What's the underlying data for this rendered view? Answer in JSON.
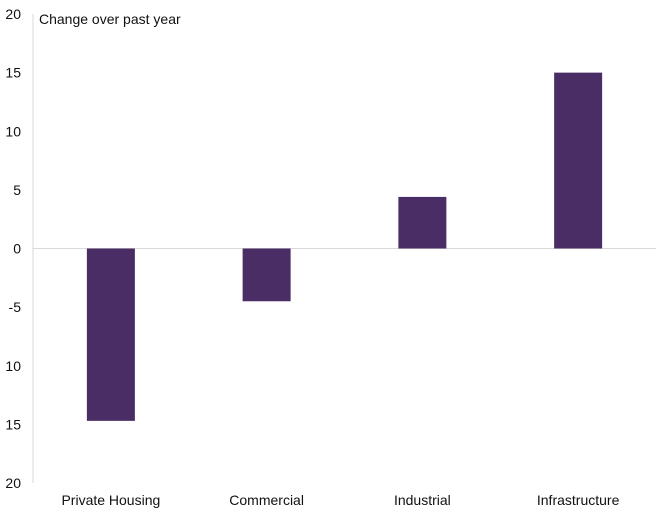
{
  "chart_data": {
    "type": "bar",
    "ylabel": "Change over past year",
    "categories": [
      "Private Housing",
      "Commercial",
      "Industrial",
      "Infrastructure"
    ],
    "values": [
      -14.7,
      -4.5,
      4.4,
      15.0
    ],
    "ylim": [
      -20,
      20
    ],
    "yticks": [
      "20",
      "15",
      "10",
      "5",
      "0",
      "-5",
      "10",
      "15",
      "20"
    ],
    "grid": false,
    "bar_color": "#4b2d65",
    "axis_color": "#d9d9d9"
  }
}
